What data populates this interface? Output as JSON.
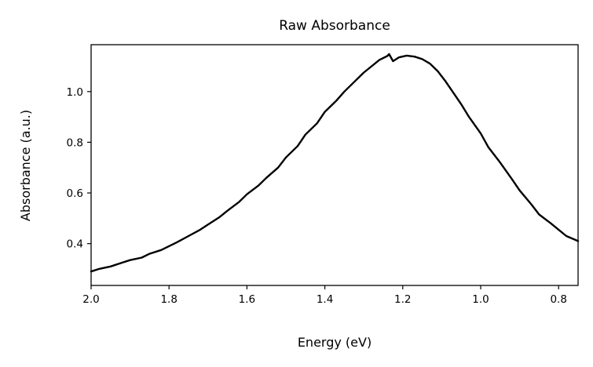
{
  "chart_data": {
    "type": "line",
    "title": "Raw Absorbance",
    "xlabel": "Energy (eV)",
    "ylabel": "Absorbance (a.u.)",
    "xlim": [
      2.0,
      0.75
    ],
    "ylim": [
      0.235,
      1.185
    ],
    "x_inverted": true,
    "grid": false,
    "legend": "none",
    "line_color": "#000000",
    "xticks": [
      2.0,
      1.8,
      1.6,
      1.4,
      1.2,
      1.0,
      0.8
    ],
    "xtick_labels": [
      "2.0",
      "1.8",
      "1.6",
      "1.4",
      "1.2",
      "1.0",
      "0.8"
    ],
    "yticks": [
      0.4,
      0.6,
      0.8,
      1.0
    ],
    "ytick_labels": [
      "0.4",
      "0.6",
      "0.8",
      "1.0"
    ],
    "series": [
      {
        "x": [
          2.0,
          1.98,
          1.95,
          1.92,
          1.9,
          1.87,
          1.85,
          1.82,
          1.8,
          1.78,
          1.75,
          1.72,
          1.7,
          1.67,
          1.65,
          1.62,
          1.6,
          1.57,
          1.55,
          1.52,
          1.5,
          1.47,
          1.45,
          1.42,
          1.4,
          1.37,
          1.35,
          1.32,
          1.3,
          1.28,
          1.26,
          1.24,
          1.235,
          1.225,
          1.21,
          1.19,
          1.17,
          1.15,
          1.13,
          1.11,
          1.09,
          1.07,
          1.05,
          1.03,
          1.0,
          0.98,
          0.95,
          0.92,
          0.9,
          0.87,
          0.85,
          0.82,
          0.8,
          0.78,
          0.75
        ],
        "y": [
          0.29,
          0.3,
          0.31,
          0.325,
          0.335,
          0.345,
          0.36,
          0.375,
          0.39,
          0.405,
          0.43,
          0.455,
          0.475,
          0.505,
          0.53,
          0.565,
          0.595,
          0.63,
          0.66,
          0.7,
          0.74,
          0.785,
          0.83,
          0.875,
          0.92,
          0.965,
          1.0,
          1.045,
          1.075,
          1.1,
          1.125,
          1.14,
          1.148,
          1.12,
          1.135,
          1.142,
          1.138,
          1.128,
          1.11,
          1.08,
          1.04,
          0.995,
          0.95,
          0.9,
          0.835,
          0.78,
          0.72,
          0.655,
          0.61,
          0.555,
          0.515,
          0.48,
          0.455,
          0.43,
          0.41
        ]
      }
    ]
  }
}
